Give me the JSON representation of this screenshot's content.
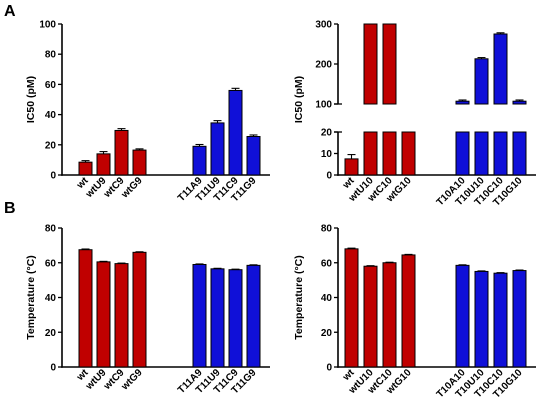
{
  "panel_labels": {
    "top": "A",
    "bottom": "B"
  },
  "colors": {
    "red": "#c00000",
    "blue": "#1010d8"
  },
  "chart_data": [
    {
      "id": "A-left",
      "type": "bar",
      "ylabel": "IC50 (pM)",
      "ylim": [
        0,
        100
      ],
      "yticks": [
        0,
        20,
        40,
        60,
        80,
        100
      ],
      "categories": [
        "wt",
        "wtU9",
        "wtC9",
        "wtG9",
        "T11A9",
        "T11U9",
        "T11C9",
        "T11G9"
      ],
      "values": [
        8.5,
        14,
        29.5,
        16.5,
        19,
        34.5,
        56,
        25.5
      ],
      "errors": [
        1,
        1.5,
        1.2,
        0.8,
        1.2,
        1.5,
        1.4,
        1
      ],
      "colors": [
        "red",
        "red",
        "red",
        "red",
        "blue",
        "blue",
        "blue",
        "blue"
      ]
    },
    {
      "id": "A-right",
      "type": "bar",
      "ylabel": "IC50 (pM)",
      "broken_axis": {
        "lower": [
          0,
          20
        ],
        "upper": [
          100,
          300
        ]
      },
      "yticks_lower": [
        0,
        10,
        20
      ],
      "yticks_upper": [
        100,
        200,
        300
      ],
      "categories": [
        "wt",
        "wtU10",
        "wtC10",
        "wtG10",
        "T10A10",
        "T10U10",
        "T10C10",
        "T10G10"
      ],
      "values": [
        7.5,
        300,
        300,
        97,
        107,
        213,
        275,
        107
      ],
      "errors": [
        2,
        0,
        0,
        3,
        3,
        3,
        3,
        3
      ],
      "colors": [
        "red",
        "red",
        "red",
        "red",
        "blue",
        "blue",
        "blue",
        "blue"
      ]
    },
    {
      "id": "B-left",
      "type": "bar",
      "ylabel": "Temperature (°C)",
      "ylim": [
        0,
        80
      ],
      "yticks": [
        0,
        20,
        40,
        60,
        80
      ],
      "categories": [
        "wt",
        "wtU9",
        "wtC9",
        "wtG9",
        "T11A9",
        "T11U9",
        "T11C9",
        "T11G9"
      ],
      "values": [
        67.5,
        60.5,
        59.5,
        66,
        59,
        56.5,
        56,
        58.5
      ],
      "errors": [
        0.4,
        0.3,
        0.3,
        0.3,
        0.3,
        0.3,
        0.3,
        0.3
      ],
      "colors": [
        "red",
        "red",
        "red",
        "red",
        "blue",
        "blue",
        "blue",
        "blue"
      ]
    },
    {
      "id": "B-right",
      "type": "bar",
      "ylabel": "Temperature (°C)",
      "ylim": [
        0,
        80
      ],
      "yticks": [
        0,
        20,
        40,
        60,
        80
      ],
      "categories": [
        "wt",
        "wtU10",
        "wtC10",
        "wtG10",
        "T10A10",
        "T10U10",
        "T10C10",
        "T10G10"
      ],
      "values": [
        68,
        58,
        60,
        64.5,
        58.5,
        55,
        54,
        55.5
      ],
      "errors": [
        0.4,
        0.3,
        0.3,
        0.3,
        0.3,
        0.3,
        0.3,
        0.3
      ],
      "colors": [
        "red",
        "red",
        "red",
        "red",
        "blue",
        "blue",
        "blue",
        "blue"
      ]
    }
  ]
}
